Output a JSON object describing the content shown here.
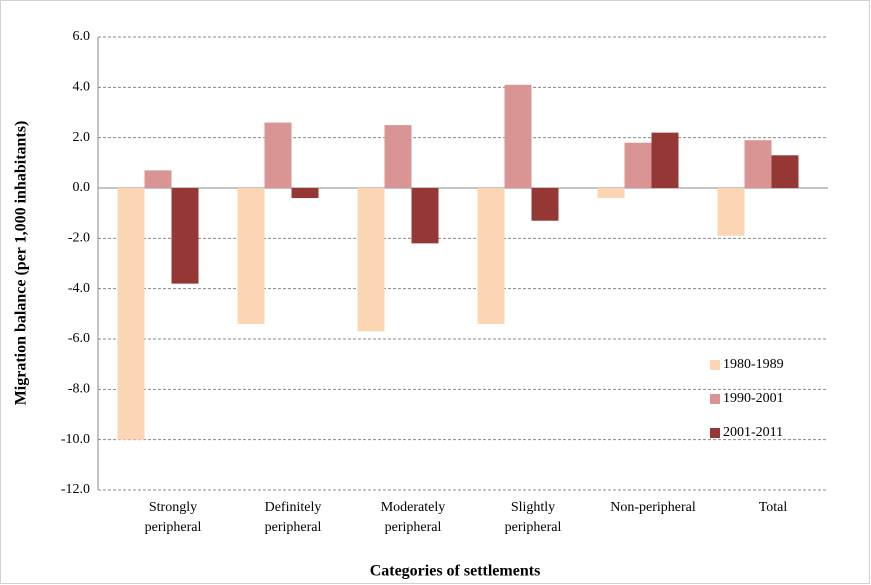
{
  "chart_data": {
    "type": "bar",
    "x_label": "Categories of settlements",
    "y_label": "Migration balance  (per 1,000 inhabitants)",
    "categories": [
      "Strongly peripheral",
      "Definitely peripheral",
      "Moderately peripheral",
      "Slightly peripheral",
      "Non-peripheral",
      "Total"
    ],
    "series": [
      {
        "name": "1980-1989",
        "color": "#fcd5b5",
        "values": [
          -10.0,
          -5.4,
          -5.7,
          -5.4,
          -0.4,
          -1.9
        ]
      },
      {
        "name": "1990-2001",
        "color": "#d99594",
        "values": [
          0.7,
          2.6,
          2.5,
          4.1,
          1.8,
          1.9
        ]
      },
      {
        "name": "2001-2011",
        "color": "#953735",
        "values": [
          -3.8,
          -0.4,
          -2.2,
          -1.3,
          2.2,
          1.3
        ]
      }
    ],
    "ylim": [
      -12,
      6
    ],
    "yticks": [
      {
        "value": -12,
        "label": "-12.0"
      },
      {
        "value": -10,
        "label": "-10.0"
      },
      {
        "value": -8,
        "label": "-8.0"
      },
      {
        "value": -6,
        "label": "-6.0"
      },
      {
        "value": -4,
        "label": "-4.0"
      },
      {
        "value": -2,
        "label": "-2.0"
      },
      {
        "value": 0,
        "label": "0.0"
      },
      {
        "value": 2,
        "label": "2.0"
      },
      {
        "value": 4,
        "label": "4.0"
      },
      {
        "value": 6,
        "label": "6.0"
      }
    ],
    "grid": true,
    "legend": "right"
  }
}
